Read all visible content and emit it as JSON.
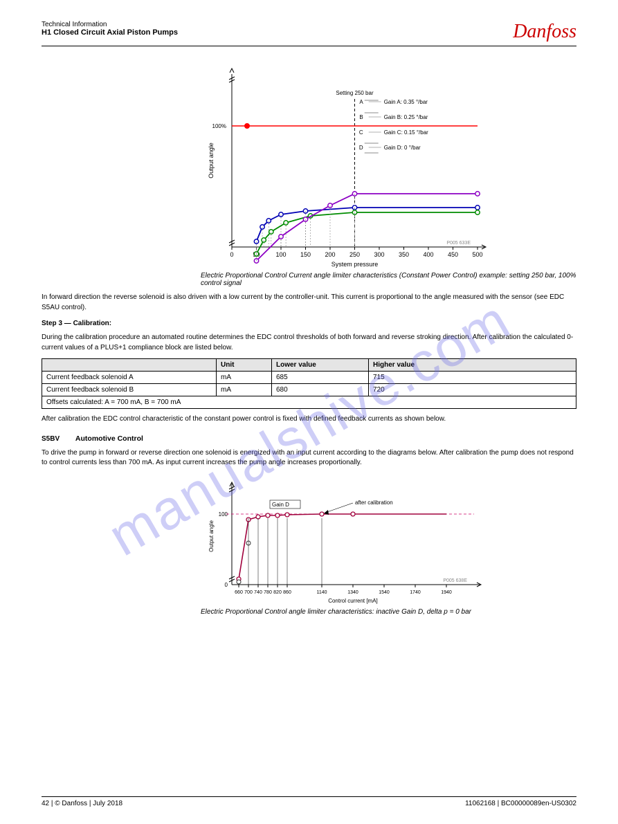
{
  "header": {
    "line1": "Technical Information",
    "line2": "H1 Closed Circuit Axial Piston Pumps",
    "logo_text": "Danfoss",
    "logo_color": "#c00000"
  },
  "chart1": {
    "xlabel": "System pressure",
    "ylabel": "Output angle",
    "xticks": [
      0,
      50,
      100,
      150,
      200,
      250,
      300,
      350,
      400,
      450,
      500
    ],
    "xlim": [
      0,
      500
    ],
    "ymin_label": "100%",
    "setting_text": "Setting 250 bar",
    "legend": [
      "Gain A: 0.35 °/bar",
      "Gain B: 0.25 °/bar",
      "Gain C: 0.15 °/bar",
      "Gain D: 0 °/bar"
    ],
    "series": [
      {
        "color": "#ff0000",
        "type": "flat"
      },
      {
        "color": "#0000b4",
        "points_x": [
          50,
          62,
          75,
          100,
          150,
          250,
          500
        ],
        "points_y": [
          262,
          241,
          232,
          223,
          218,
          213,
          213
        ]
      },
      {
        "color": "#008c00",
        "points_x": [
          50,
          65,
          80,
          110,
          160,
          250,
          500
        ],
        "points_y": [
          280,
          260,
          248,
          235,
          225,
          220,
          220
        ]
      },
      {
        "color": "#8c00c4",
        "points_x": [
          50,
          100,
          150,
          200,
          250,
          500
        ],
        "points_y": [
          290,
          255,
          230,
          210,
          193,
          193
        ]
      }
    ],
    "callouts": [
      "A",
      "B",
      "C",
      "D"
    ],
    "code": "P005 633E",
    "title": "Electric Proportional Control Current angle limiter characteristics (Constant Power Control) example: setting 250 bar, 100% control signal"
  },
  "p1": "In forward direction the reverse solenoid is also driven with a low current by the controller-unit. This current is proportional to the angle measured with the sensor (see EDC S5AU control).",
  "step_label": "Step 3 — Calibration:",
  "p2": "During the calibration procedure an automated routine determines the EDC control thresholds of both forward and reverse stroking direction. After calibration the calculated 0-current values of a PLUS+1 compliance block are listed below.",
  "table": {
    "headers": [
      "",
      "Unit",
      "Lower value",
      "Higher value"
    ],
    "rows": [
      [
        "Current feedback solenoid A",
        "mA",
        "685",
        "715"
      ],
      [
        "Current feedback solenoid B",
        "mA",
        "680",
        "720"
      ]
    ],
    "full_row": "Offsets calculated: A = 700 mA, B = 700 mA"
  },
  "p3": "After calibration the EDC control characteristic of the constant power control is fixed with defined feedback currents as shown below.",
  "section": {
    "num": "S5BV",
    "title": "Automotive Control"
  },
  "p4": "To drive the pump in forward or reverse direction one solenoid is energized with an input current according to the diagrams below. After calibration the pump does not respond to control currents less than 700 mA. As input current increases the pump angle increases proportionally.",
  "chart2": {
    "axis_label_y": "Output angle",
    "axis_label_x": "Control current [mA]",
    "legend": "Gain D",
    "note": "after calibration",
    "series_color": "#a0003c",
    "yticks": [
      0,
      100
    ],
    "xticks": [
      660,
      700,
      740,
      780,
      820,
      860,
      1140,
      1340,
      1540,
      1740,
      1940
    ],
    "code": "P005 638E"
  },
  "caption2": "Electric Proportional Control angle limiter characteristics: inactive Gain D, delta p = 0 bar",
  "footer": {
    "left": "42 | © Danfoss | July 2018",
    "right": "11062168 | BC00000089en-US0302"
  },
  "watermark": "manualshive.com"
}
